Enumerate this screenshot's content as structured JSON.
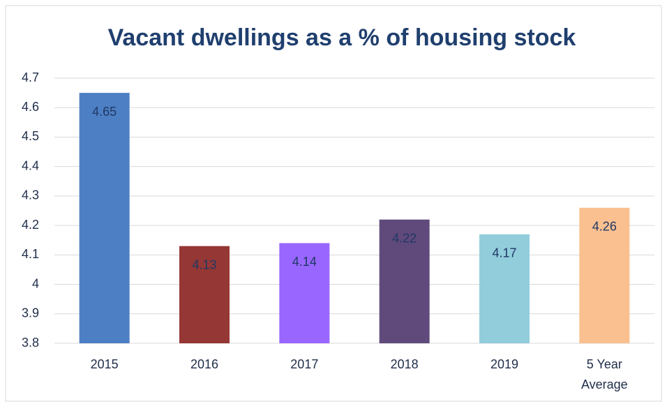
{
  "chart_data": {
    "type": "bar",
    "title": "Vacant dwellings as a % of housing stock",
    "categories": [
      "2015",
      "2016",
      "2017",
      "2018",
      "2019",
      "5 Year Average"
    ],
    "values": [
      4.65,
      4.13,
      4.14,
      4.22,
      4.17,
      4.26
    ],
    "colors": [
      "#4d7fc4",
      "#953735",
      "#9966ff",
      "#604a7b",
      "#92cddc",
      "#fac090"
    ],
    "ylim": [
      3.8,
      4.7
    ],
    "yticks": [
      3.8,
      3.9,
      4,
      4.1,
      4.2,
      4.3,
      4.4,
      4.5,
      4.6,
      4.7
    ],
    "grid": true
  }
}
